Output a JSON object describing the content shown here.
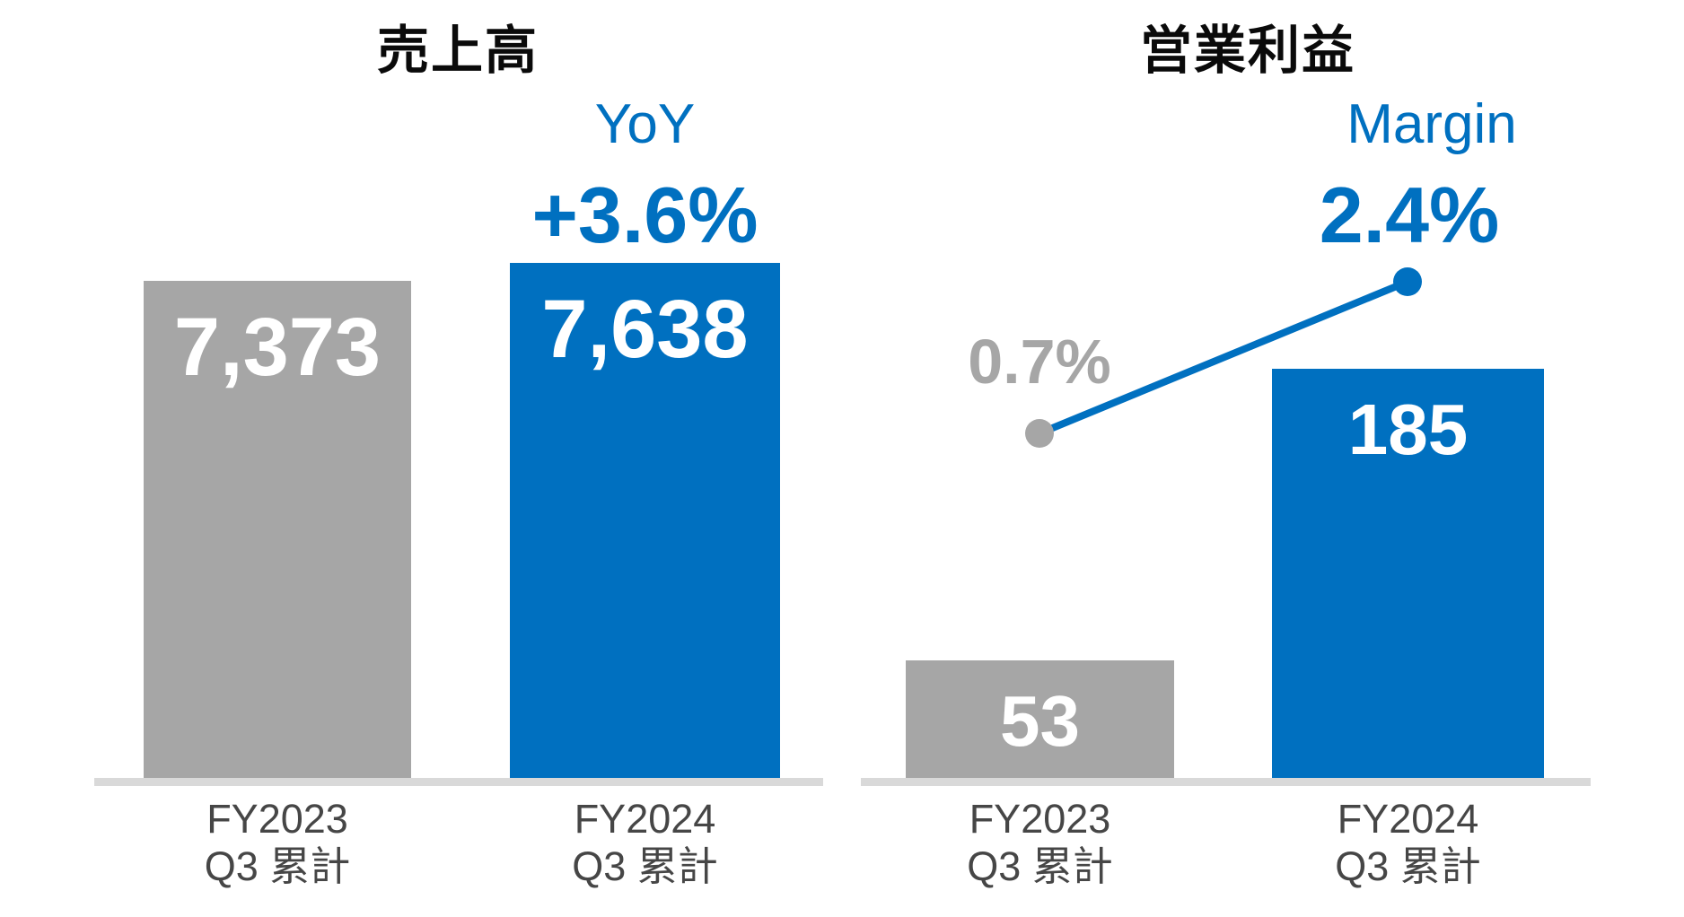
{
  "colors": {
    "blue": "#0070C0",
    "gray": "#A6A6A6",
    "baseline": "#D9D9D9",
    "axis_text": "#464646",
    "title_text": "#0a0a0a",
    "bar_label": "#FFFFFF"
  },
  "revenue": {
    "title": "売上高",
    "yoy_label": "YoY",
    "yoy_value": "+3.6%",
    "bars": [
      {
        "period_line1": "FY2023",
        "period_line2": "Q3 累計",
        "value": 7373,
        "value_label": "7,373",
        "color": "gray"
      },
      {
        "period_line1": "FY2024",
        "period_line2": "Q3 累計",
        "value": 7638,
        "value_label": "7,638",
        "color": "blue"
      }
    ]
  },
  "operating_profit": {
    "title": "営業利益",
    "margin_label": "Margin",
    "margin_prev": "0.7%",
    "margin_cur": "2.4%",
    "bars": [
      {
        "period_line1": "FY2023",
        "period_line2": "Q3 累計",
        "value": 53,
        "value_label": "53",
        "color": "gray"
      },
      {
        "period_line1": "FY2024",
        "period_line2": "Q3 累計",
        "value": 185,
        "value_label": "185",
        "color": "blue"
      }
    ]
  },
  "chart_data": [
    {
      "type": "bar",
      "title": "売上高",
      "categories": [
        "FY2023 Q3 累計",
        "FY2024 Q3 累計"
      ],
      "values": [
        7373,
        7638
      ],
      "bar_colors": [
        "#A6A6A6",
        "#0070C0"
      ],
      "data_labels": [
        "7,373",
        "7,638"
      ],
      "annotations": [
        {
          "text": "YoY",
          "color": "#0070C0"
        },
        {
          "text": "+3.6%",
          "color": "#0070C0"
        }
      ],
      "xlabel": "",
      "ylabel": "",
      "ylim": [
        0,
        7638
      ],
      "grid": false,
      "legend": "none",
      "axis_line": "bottom only"
    },
    {
      "type": "bar",
      "title": "営業利益",
      "categories": [
        "FY2023 Q3 累計",
        "FY2024 Q3 累計"
      ],
      "values": [
        53,
        185
      ],
      "bar_colors": [
        "#A6A6A6",
        "#0070C0"
      ],
      "data_labels": [
        "53",
        "185"
      ],
      "annotations": [
        {
          "text": "Margin",
          "color": "#0070C0"
        }
      ],
      "overlay_line": {
        "type": "line",
        "name": "Margin",
        "values_percent": [
          0.7,
          2.4
        ],
        "labels": [
          "0.7%",
          "2.4%"
        ],
        "line_color": "#0070C0",
        "point_colors": [
          "#A6A6A6",
          "#0070C0"
        ]
      },
      "xlabel": "",
      "ylabel": "",
      "ylim": [
        0,
        185
      ],
      "grid": false,
      "legend": "none",
      "axis_line": "bottom only"
    }
  ]
}
